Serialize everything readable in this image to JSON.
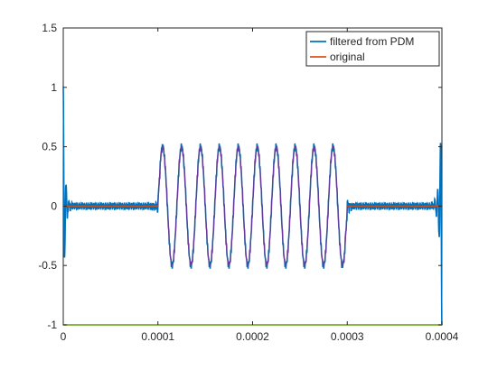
{
  "chart_data": {
    "type": "line",
    "title": "",
    "xlabel": "",
    "ylabel": "",
    "xlim": [
      0,
      0.0004
    ],
    "ylim": [
      -1,
      1.5
    ],
    "x_ticks": [
      {
        "value": 0,
        "label": "0"
      },
      {
        "value": 0.0001,
        "label": "0.0001"
      },
      {
        "value": 0.0002,
        "label": "0.0002"
      },
      {
        "value": 0.0003,
        "label": "0.0003"
      },
      {
        "value": 0.0004,
        "label": "0.0004"
      }
    ],
    "y_ticks": [
      {
        "value": -1,
        "label": "-1"
      },
      {
        "value": -0.5,
        "label": "-0.5"
      },
      {
        "value": 0,
        "label": "0"
      },
      {
        "value": 0.5,
        "label": "0.5"
      },
      {
        "value": 1,
        "label": "1"
      },
      {
        "value": 1.5,
        "label": "1.5"
      }
    ],
    "grid": false,
    "legend_position": "top-right",
    "burst": {
      "start": 0.0001,
      "end": 0.0003,
      "amplitude": 0.5,
      "frequency_hz": 50000
    },
    "series": [
      {
        "name": "filtered from PDM",
        "color": "#0072BD",
        "description_values": "sine burst with edge ringing; ringing at x=0 reaching about 1.0 and at x=0.0004 down to about -1.0"
      },
      {
        "name": "original",
        "color": "#D95319"
      },
      {
        "name": "",
        "color": "#77AC30",
        "constant_value": -1
      }
    ]
  }
}
